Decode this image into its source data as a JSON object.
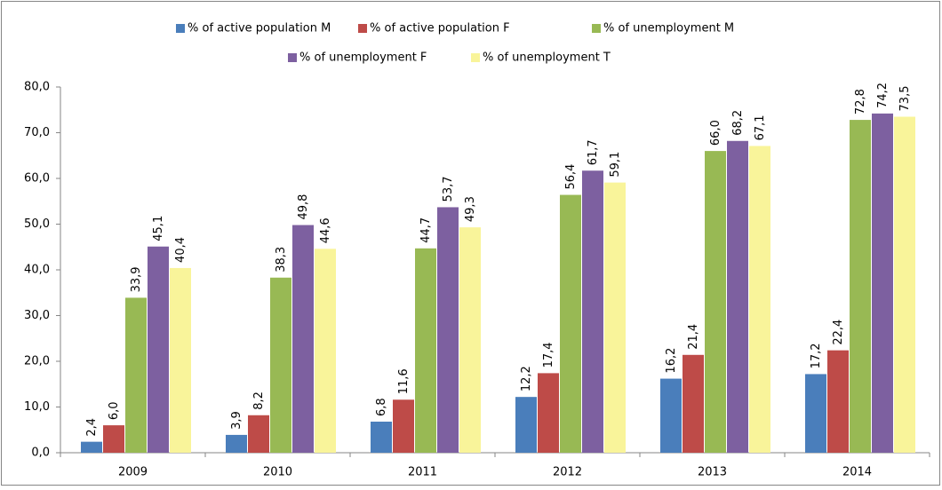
{
  "chart_data": {
    "type": "bar",
    "categories": [
      "2009",
      "2010",
      "2011",
      "2012",
      "2013",
      "2014"
    ],
    "series": [
      {
        "name": "% of active population M",
        "color": "#4a7ebb",
        "values": [
          2.4,
          3.9,
          6.8,
          12.2,
          16.2,
          17.2
        ],
        "value_labels": [
          "2,4",
          "3,9",
          "6,8",
          "12,2",
          "16,2",
          "17,2"
        ]
      },
      {
        "name": "% of active population F",
        "color": "#be4b48",
        "values": [
          6.0,
          8.2,
          11.6,
          17.4,
          21.4,
          22.4
        ],
        "value_labels": [
          "6,0",
          "8,2",
          "11,6",
          "17,4",
          "21,4",
          "22,4"
        ]
      },
      {
        "name": "% of unemployment M",
        "color": "#98b954",
        "values": [
          33.9,
          38.3,
          44.7,
          56.4,
          66.0,
          72.8
        ],
        "value_labels": [
          "33,9",
          "38,3",
          "44,7",
          "56,4",
          "66,0",
          "72,8"
        ]
      },
      {
        "name": "% of unemployment F",
        "color": "#7d60a0",
        "values": [
          45.1,
          49.8,
          53.7,
          61.7,
          68.2,
          74.2
        ],
        "value_labels": [
          "45,1",
          "49,8",
          "53,7",
          "61,7",
          "68,2",
          "74,2"
        ]
      },
      {
        "name": "% of unemployment T",
        "color": "#f9f49a",
        "values": [
          40.4,
          44.6,
          49.3,
          59.1,
          67.1,
          73.5
        ],
        "value_labels": [
          "40,4",
          "44,6",
          "49,3",
          "59,1",
          "67,1",
          "73,5"
        ]
      }
    ],
    "ylim": [
      0,
      80
    ],
    "yticks": [
      {
        "value": 0,
        "label": "0,0"
      },
      {
        "value": 10,
        "label": "10,0"
      },
      {
        "value": 20,
        "label": "20,0"
      },
      {
        "value": 30,
        "label": "30,0"
      },
      {
        "value": 40,
        "label": "40,0"
      },
      {
        "value": 50,
        "label": "50,0"
      },
      {
        "value": 60,
        "label": "60,0"
      },
      {
        "value": 70,
        "label": "70,0"
      },
      {
        "value": 80,
        "label": "80,0"
      }
    ],
    "legend": "top",
    "grid": false
  }
}
